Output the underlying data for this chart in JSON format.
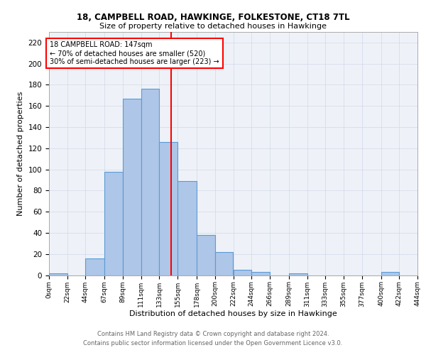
{
  "title1": "18, CAMPBELL ROAD, HAWKINGE, FOLKESTONE, CT18 7TL",
  "title2": "Size of property relative to detached houses in Hawkinge",
  "xlabel": "Distribution of detached houses by size in Hawkinge",
  "ylabel": "Number of detached properties",
  "bin_labels": [
    "0sqm",
    "22sqm",
    "44sqm",
    "67sqm",
    "89sqm",
    "111sqm",
    "133sqm",
    "155sqm",
    "178sqm",
    "200sqm",
    "222sqm",
    "244sqm",
    "266sqm",
    "289sqm",
    "311sqm",
    "333sqm",
    "355sqm",
    "377sqm",
    "400sqm",
    "422sqm",
    "444sqm"
  ],
  "bar_heights": [
    2,
    0,
    16,
    98,
    167,
    176,
    126,
    89,
    38,
    22,
    5,
    3,
    0,
    2,
    0,
    0,
    0,
    0,
    3,
    0
  ],
  "bar_color": "#aec6e8",
  "bar_edge_color": "#5b9bd5",
  "vline_x": 147,
  "vline_color": "red",
  "annotation_text": "18 CAMPBELL ROAD: 147sqm\n← 70% of detached houses are smaller (520)\n30% of semi-detached houses are larger (223) →",
  "annotation_box_color": "white",
  "annotation_box_edge": "red",
  "ylim": [
    0,
    230
  ],
  "yticks": [
    0,
    20,
    40,
    60,
    80,
    100,
    120,
    140,
    160,
    180,
    200,
    220
  ],
  "footer1": "Contains HM Land Registry data © Crown copyright and database right 2024.",
  "footer2": "Contains public sector information licensed under the Open Government Licence v3.0.",
  "grid_color": "#d0d8e8",
  "bg_color": "#eef2f8",
  "bins_left": [
    0,
    22,
    44,
    67,
    89,
    111,
    133,
    155,
    178,
    200,
    222,
    244,
    266,
    289,
    311,
    333,
    355,
    377,
    400,
    422
  ],
  "bins_right": [
    22,
    44,
    67,
    89,
    111,
    133,
    155,
    178,
    200,
    222,
    244,
    266,
    289,
    311,
    333,
    355,
    377,
    400,
    422,
    444
  ]
}
